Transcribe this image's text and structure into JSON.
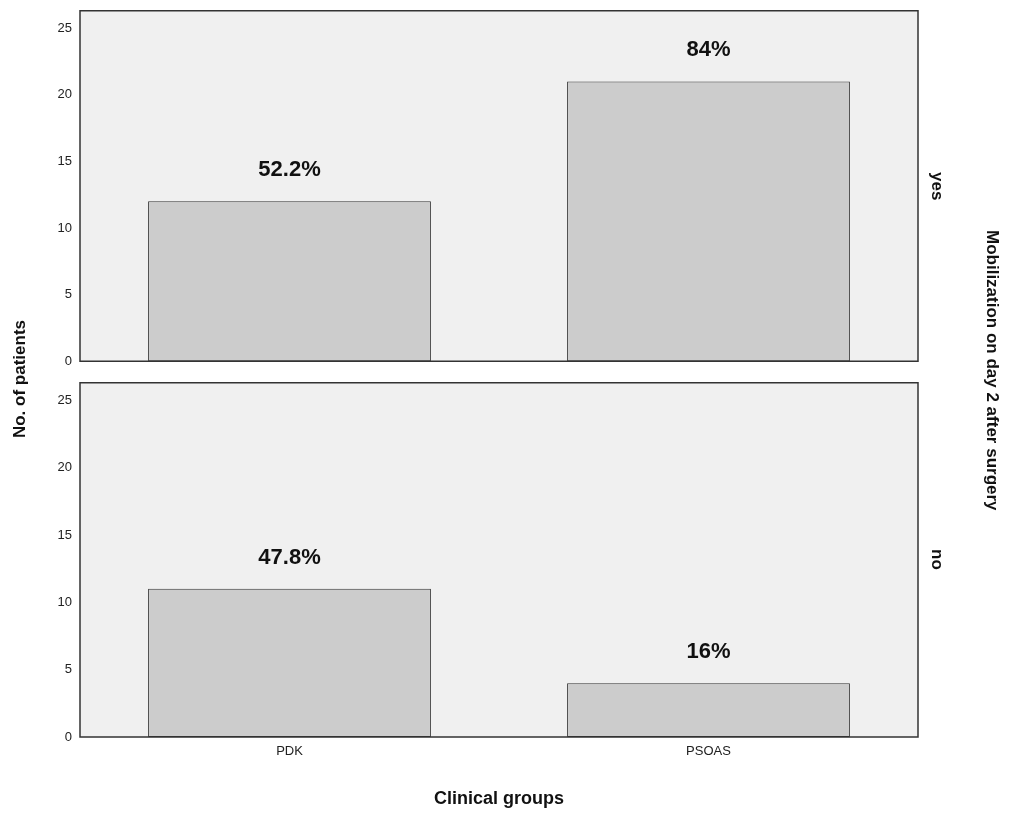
{
  "chart_data": [
    {
      "type": "bar",
      "categories": [
        "PDK",
        "PSOAS"
      ],
      "values": [
        12,
        21
      ],
      "color": "#cccccc",
      "ylim": [
        0,
        26.3
      ],
      "yticks": [
        0,
        5,
        10,
        15,
        20,
        25
      ],
      "tick_labels": "y",
      "grid": false,
      "legend": false,
      "ylabel": "No. of patients",
      "annotations": [
        {
          "text": "52.2%",
          "x": "PDK",
          "y": 12
        },
        {
          "text": "84%",
          "x": "PSOAS",
          "y": 21
        },
        "yes",
        "Mobilization on day 2 after surgery"
      ]
    },
    {
      "type": "bar",
      "categories": [
        "PDK",
        "PSOAS"
      ],
      "values": [
        11,
        4
      ],
      "color": "#cccccc",
      "ylim": [
        0,
        26.3
      ],
      "yticks": [
        0,
        5,
        10,
        15,
        20,
        25
      ],
      "grid": false,
      "legend": false,
      "xlabel": "Clinical groups",
      "annotations": [
        {
          "text": "47.8%",
          "x": "PDK",
          "y": 11
        },
        {
          "text": "16%",
          "x": "PSOAS",
          "y": 4
        },
        "no"
      ]
    }
  ]
}
